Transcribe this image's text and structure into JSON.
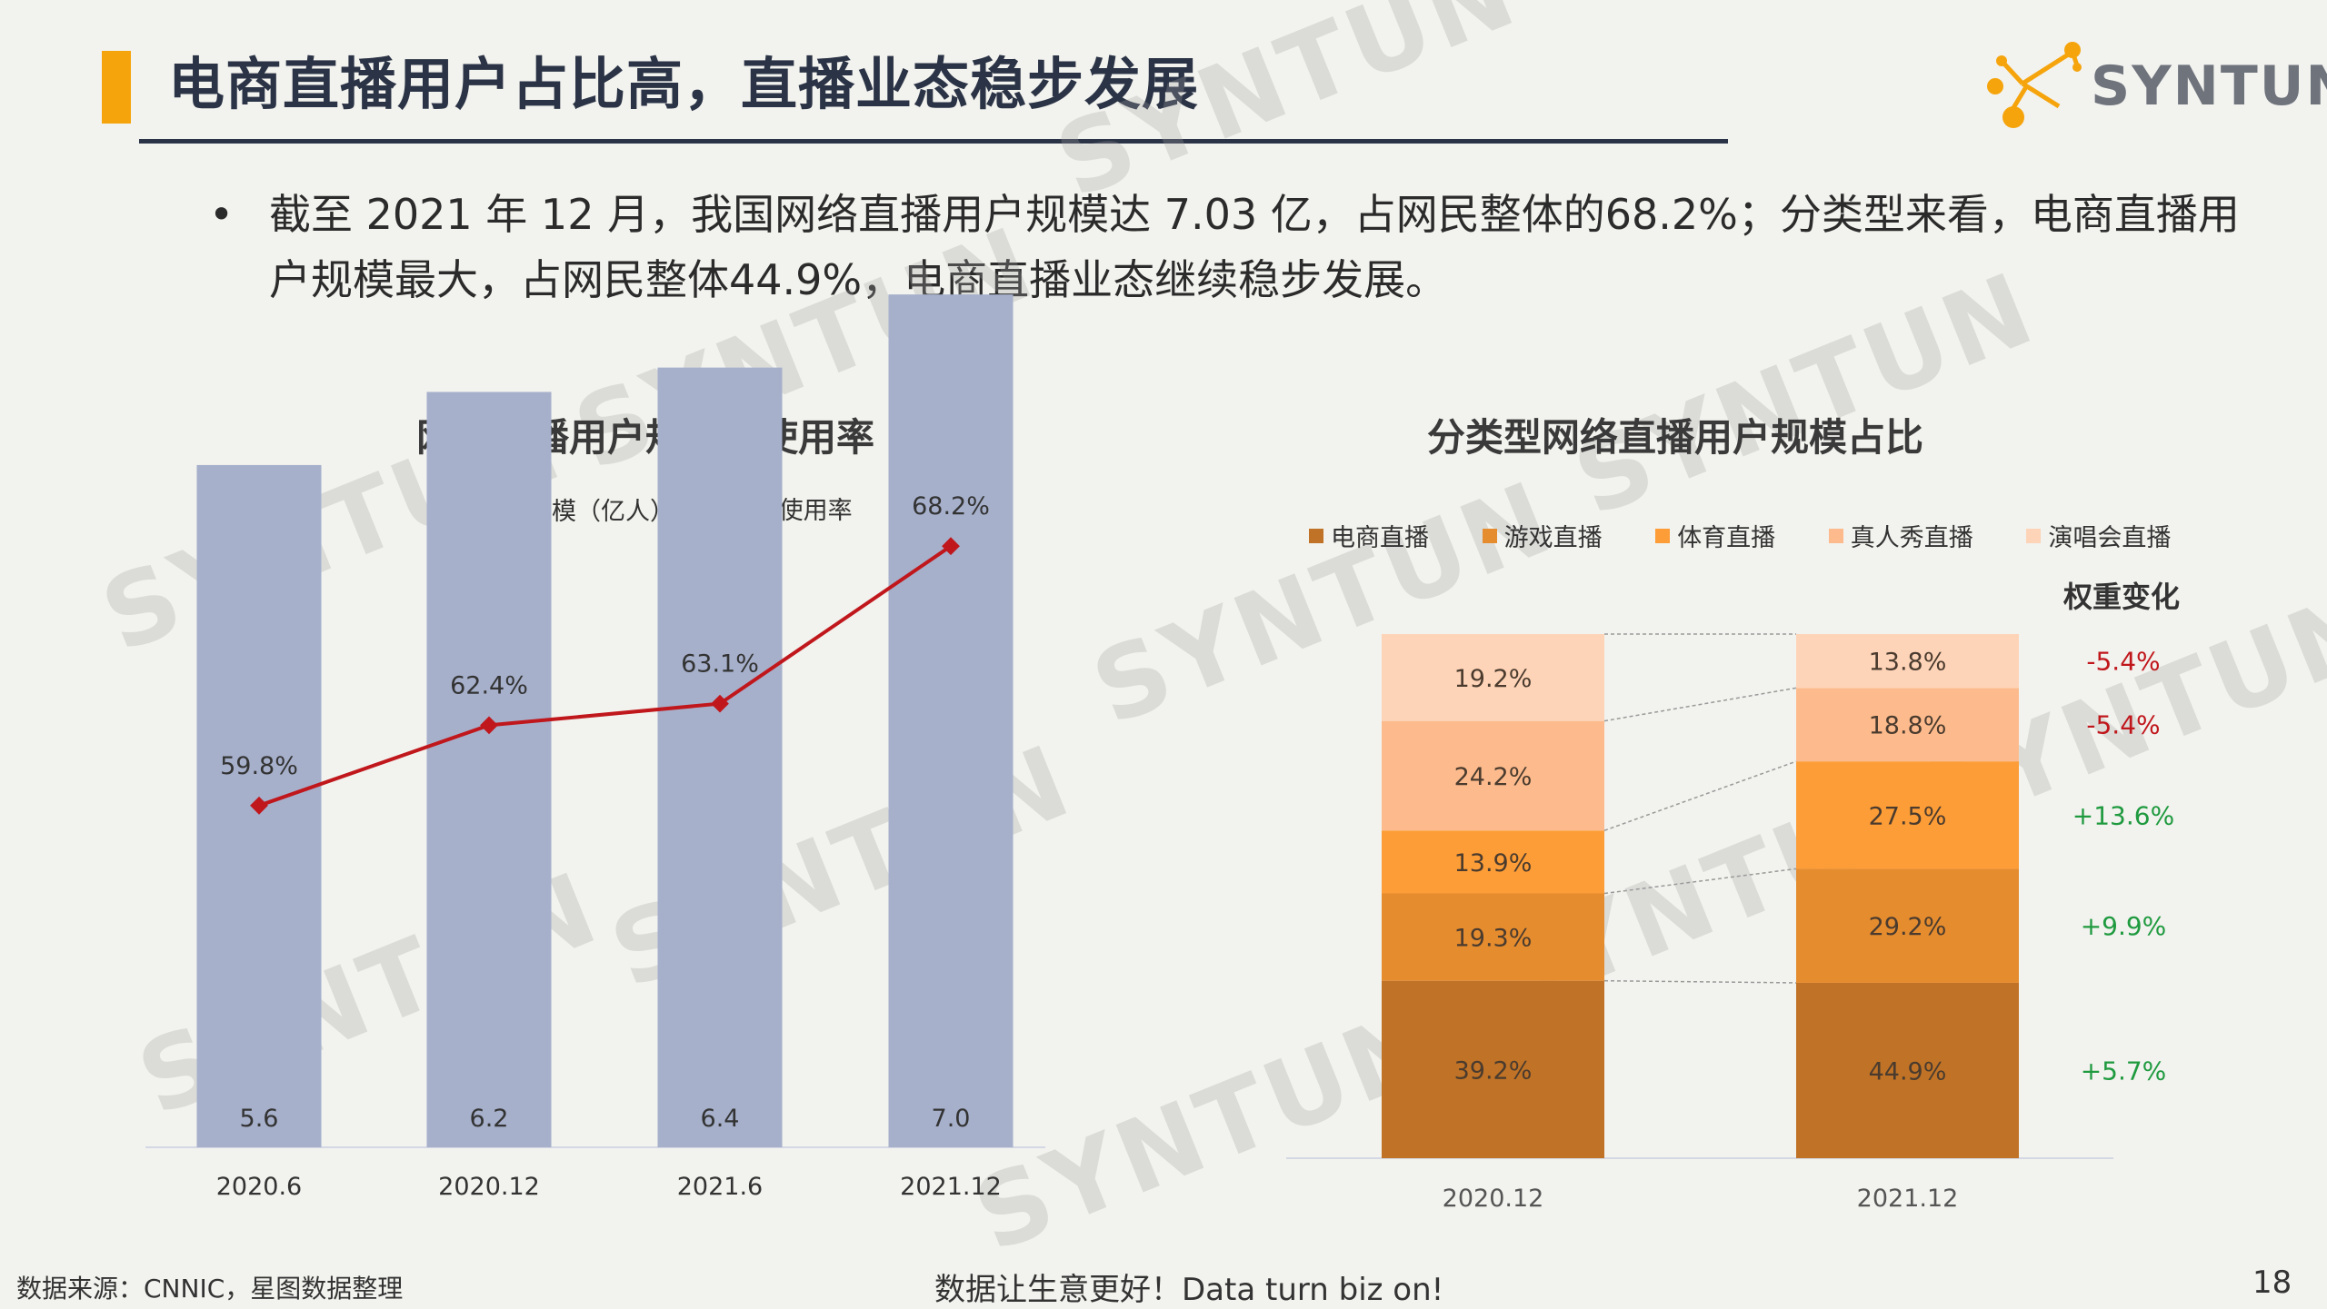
{
  "header": {
    "title": "电商直播用户占比高，直播业态稳步发展",
    "logo_text": "SYNTUN"
  },
  "bullet": {
    "marker": "•",
    "text": "截至 2021 年 12 月，我国网络直播用户规模达 7.03 亿，占网民整体的68.2%；分类型来看，电商直播用户规模最大，占网民整体44.9%，电商直播业态继续稳步发展。"
  },
  "watermark": "SYNTUN",
  "colors": {
    "accent": "#f5a40c",
    "title": "#2b3446",
    "bar": "#a6b0cb",
    "line": "#c0171c",
    "positive": "#1f9a3f",
    "negative": "#c0171c"
  },
  "chart_data": [
    {
      "type": "bar",
      "title": "网络直播用户规模及使用率",
      "categories": [
        "2020.6",
        "2020.12",
        "2021.6",
        "2021.12"
      ],
      "series": [
        {
          "name": "用户规模（亿人）",
          "kind": "bar",
          "values": [
            5.6,
            6.2,
            6.4,
            7.0
          ],
          "labels": [
            "5.6",
            "6.2",
            "6.4",
            "7.0"
          ]
        },
        {
          "name": "使用率",
          "kind": "line",
          "values": [
            59.8,
            62.4,
            63.1,
            68.2
          ],
          "labels": [
            "59.8%",
            "62.4%",
            "63.1%",
            "68.2%"
          ]
        }
      ],
      "ylim_bar": [
        0,
        8
      ],
      "ylim_line": [
        50,
        70
      ]
    },
    {
      "type": "bar",
      "stacked": true,
      "percent": true,
      "title": "分类型网络直播用户规模占比",
      "categories": [
        "2020.12",
        "2021.12"
      ],
      "series": [
        {
          "name": "电商直播",
          "color": "#c07326",
          "values": [
            39.2,
            44.9
          ],
          "labels": [
            "39.2%",
            "44.9%"
          ]
        },
        {
          "name": "游戏直播",
          "color": "#e58c2f",
          "values": [
            19.3,
            29.2
          ],
          "labels": [
            "19.3%",
            "29.2%"
          ]
        },
        {
          "name": "体育直播",
          "color": "#fd9d37",
          "values": [
            13.9,
            27.5
          ],
          "labels": [
            "13.9%",
            "27.5%"
          ]
        },
        {
          "name": "真人秀直播",
          "color": "#fdbb8d",
          "values": [
            24.2,
            18.8
          ],
          "labels": [
            "24.2%",
            "18.8%"
          ]
        },
        {
          "name": "演唱会直播",
          "color": "#fed4b8",
          "values": [
            19.2,
            13.8
          ],
          "labels": [
            "19.2%",
            "13.8%"
          ]
        }
      ],
      "weight_change_title": "权重变化",
      "weight_change": [
        {
          "series": "演唱会直播",
          "label": "-5.4%",
          "sign": "negative"
        },
        {
          "series": "真人秀直播",
          "label": "-5.4%",
          "sign": "negative"
        },
        {
          "series": "体育直播",
          "label": "+13.6%",
          "sign": "positive"
        },
        {
          "series": "游戏直播",
          "label": "+9.9%",
          "sign": "positive"
        },
        {
          "series": "电商直播",
          "label": "+5.7%",
          "sign": "positive"
        }
      ]
    }
  ],
  "footer": {
    "source": "数据来源：CNNIC，星图数据整理",
    "slogan": "数据让生意更好！Data turn biz on!",
    "page": "18"
  }
}
